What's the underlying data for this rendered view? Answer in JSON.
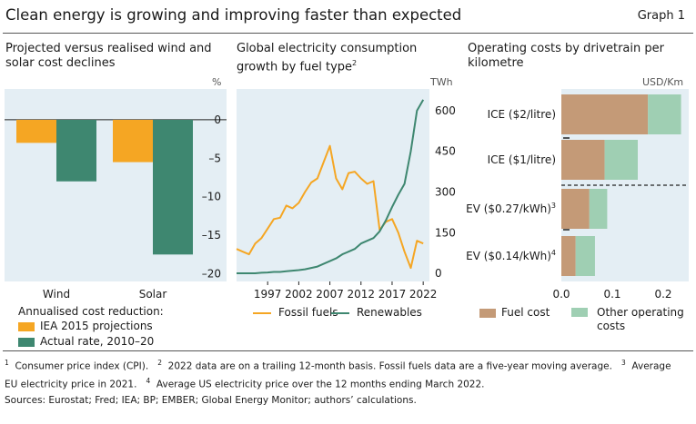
{
  "header": {
    "title": "Clean energy is growing and improving faster than expected",
    "graph_label": "Graph 1"
  },
  "panels": [
    {
      "title": "Projected versus realised wind and solar cost declines",
      "unit": "%"
    },
    {
      "title": "Global electricity consumption growth by fuel type",
      "title_sup": "2",
      "unit": "TWh"
    },
    {
      "title": "Operating costs by drivetrain per kilometre",
      "unit": "USD/Km"
    }
  ],
  "chart_data": [
    {
      "type": "bar",
      "title": "Projected versus realised wind and solar cost declines",
      "ylabel": "%",
      "ylim": [
        -21,
        4
      ],
      "yticks": [
        0,
        -5,
        -10,
        -15,
        -20
      ],
      "categories": [
        "Wind",
        "Solar"
      ],
      "legend_title": "Annualised cost reduction:",
      "series": [
        {
          "name": "IEA 2015 projections",
          "color": "#f5a623",
          "values": [
            -3,
            -5.5
          ]
        },
        {
          "name": "Actual rate, 2010–20",
          "color": "#3e8770",
          "values": [
            -8,
            -17.5
          ]
        }
      ]
    },
    {
      "type": "line",
      "title": "Global electricity consumption growth by fuel type",
      "ylabel": "TWh",
      "xlim": [
        1992,
        2023
      ],
      "ylim": [
        -30,
        680
      ],
      "xticks": [
        1997,
        2002,
        2007,
        2012,
        2017,
        2022
      ],
      "yticks": [
        0,
        150,
        300,
        450,
        600
      ],
      "x": [
        1992,
        1993,
        1994,
        1995,
        1996,
        1997,
        1998,
        1999,
        2000,
        2001,
        2002,
        2003,
        2004,
        2005,
        2006,
        2007,
        2008,
        2009,
        2010,
        2011,
        2012,
        2013,
        2014,
        2015,
        2016,
        2017,
        2018,
        2019,
        2020,
        2021,
        2022
      ],
      "series": [
        {
          "name": "Fossil fuels",
          "color": "#f5a623",
          "values": [
            90,
            80,
            70,
            110,
            130,
            165,
            200,
            205,
            250,
            240,
            260,
            300,
            335,
            350,
            410,
            470,
            350,
            310,
            370,
            375,
            350,
            330,
            340,
            160,
            190,
            200,
            150,
            80,
            20,
            120,
            110
          ]
        },
        {
          "name": "Renewables",
          "color": "#3e8770",
          "values": [
            0,
            0,
            0,
            0,
            2,
            3,
            5,
            5,
            8,
            10,
            12,
            15,
            20,
            25,
            35,
            45,
            55,
            70,
            80,
            90,
            110,
            120,
            130,
            155,
            195,
            245,
            290,
            330,
            450,
            600,
            640
          ]
        }
      ]
    },
    {
      "type": "bar",
      "orientation": "horizontal-stacked",
      "title": "Operating costs by drivetrain per kilometre",
      "xlabel": "USD/Km",
      "xlim": [
        0,
        0.25
      ],
      "xticks": [
        "0.0",
        "0.1",
        "0.2"
      ],
      "categories": [
        "ICE ($2/litre)",
        "ICE ($1/litre)",
        "EV ($0.27/kWh)",
        "EV ($0.14/kWh)"
      ],
      "category_sups": [
        "",
        "",
        "3",
        "4"
      ],
      "series": [
        {
          "name": "Fuel cost",
          "color": "#c49a77",
          "values": [
            0.17,
            0.085,
            0.055,
            0.028
          ]
        },
        {
          "name": "Other operating costs",
          "color": "#9fcfb3",
          "values": [
            0.065,
            0.065,
            0.035,
            0.038
          ]
        }
      ]
    }
  ],
  "footnotes": {
    "n1_mark": "1",
    "n1": "Consumer price index (CPI).",
    "n2_mark": "2",
    "n2": "2022 data are on a trailing 12-month basis. Fossil fuels data are a five-year moving average.",
    "n3_mark": "3",
    "n3a": "Average",
    "n3b": "EU electricity price in 2021.",
    "n4_mark": "4",
    "n4": "Average US electricity price over the 12 months ending March 2022."
  },
  "sources": "Sources: Eurostat; Fred; IEA; BP; EMBER; Global Energy Monitor; authors’ calculations."
}
